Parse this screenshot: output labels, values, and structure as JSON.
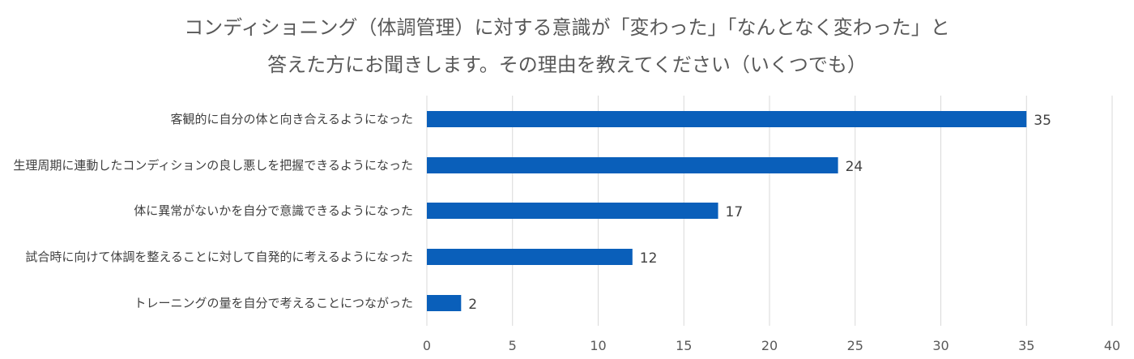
{
  "chart_data": {
    "type": "bar",
    "orientation": "horizontal",
    "title_lines": [
      "コンディショニング（体調管理）に対する意識が「変わった」「なんとなく変わった」と",
      "答えた方にお聞きします。その理由を教えてください（いくつでも）"
    ],
    "categories": [
      "客観的に自分の体と向き合えるようになった",
      "生理周期に連動したコンディションの良し悪しを把握できるようになった",
      "体に異常がないかを自分で意識できるようになった",
      "試合時に向けて体調を整えることに対して自発的に考えるようになった",
      "トレーニングの量を自分で考えることにつながった"
    ],
    "values": [
      35,
      24,
      17,
      12,
      2
    ],
    "xlim": [
      0,
      40
    ],
    "xticks": [
      0,
      5,
      10,
      15,
      20,
      25,
      30,
      35,
      40
    ],
    "grid": "vertical",
    "legend": "none",
    "bar_color": "#0a5fba",
    "grid_color": "#d9d9d9"
  }
}
